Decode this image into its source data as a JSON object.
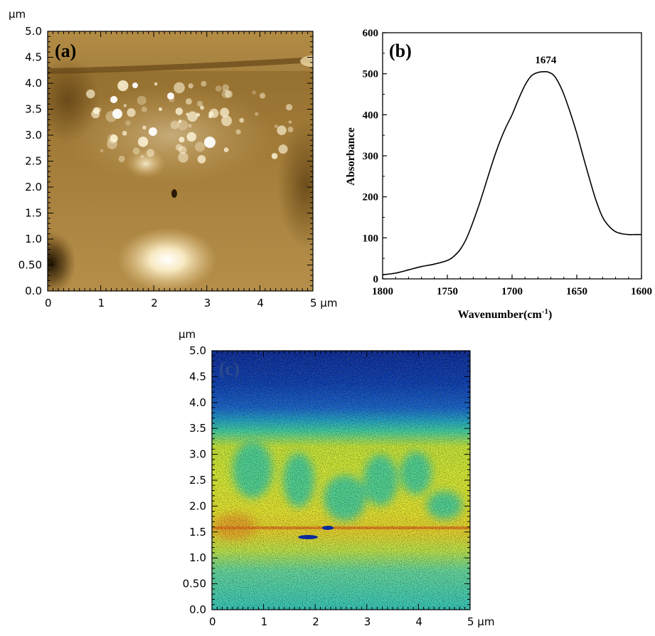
{
  "chart_data": [
    {
      "panel": "a",
      "type": "heatmap",
      "panel_label": "(a)",
      "colormap": "afm-gold",
      "unit": "μm",
      "x_ticks": [
        "0",
        "1",
        "2",
        "3",
        "4",
        "5 μm"
      ],
      "y_ticks": [
        "0.0",
        "0.50",
        "1.0",
        "1.5",
        "2.0",
        "2.5",
        "3.0",
        "3.5",
        "4.0",
        "4.5",
        "5.0"
      ],
      "xlim": [
        0,
        5
      ],
      "ylim": [
        0,
        5
      ]
    },
    {
      "panel": "b",
      "type": "line",
      "panel_label": "(b)",
      "xlabel": "Wavenumber(cm",
      "xlabel_sup": "-1",
      "xlabel_suffix": ")",
      "ylabel": "Absorbance",
      "xlim": [
        1800,
        1600
      ],
      "ylim": [
        0,
        600
      ],
      "x_ticks": [
        1800,
        1750,
        1700,
        1650,
        1600
      ],
      "y_ticks": [
        0,
        100,
        200,
        300,
        400,
        500,
        600
      ],
      "annotation": {
        "text": "1674",
        "x": 1674,
        "y": 505
      },
      "series": [
        {
          "x": [
            1800,
            1790,
            1780,
            1770,
            1760,
            1750,
            1745,
            1740,
            1735,
            1730,
            1725,
            1720,
            1715,
            1710,
            1705,
            1700,
            1695,
            1690,
            1685,
            1680,
            1676,
            1674,
            1672,
            1668,
            1664,
            1660,
            1655,
            1650,
            1645,
            1640,
            1635,
            1630,
            1625,
            1620,
            1615,
            1610,
            1605,
            1600
          ],
          "y": [
            10,
            14,
            22,
            30,
            36,
            45,
            55,
            72,
            100,
            140,
            185,
            235,
            285,
            330,
            368,
            400,
            438,
            472,
            495,
            503,
            505,
            505,
            504,
            497,
            478,
            450,
            405,
            355,
            298,
            242,
            190,
            150,
            128,
            115,
            110,
            108,
            108,
            108
          ]
        }
      ]
    },
    {
      "panel": "c",
      "type": "heatmap",
      "panel_label": "(c)",
      "colormap": "jet",
      "unit": "μm",
      "x_ticks": [
        "0",
        "1",
        "2",
        "3",
        "4",
        "5 μm"
      ],
      "y_ticks": [
        "0.0",
        "0.50",
        "1.0",
        "1.5",
        "2.0",
        "2.5",
        "3.0",
        "3.5",
        "4.0",
        "4.5",
        "5.0"
      ],
      "xlim": [
        0,
        5
      ],
      "ylim": [
        0,
        5
      ]
    }
  ]
}
